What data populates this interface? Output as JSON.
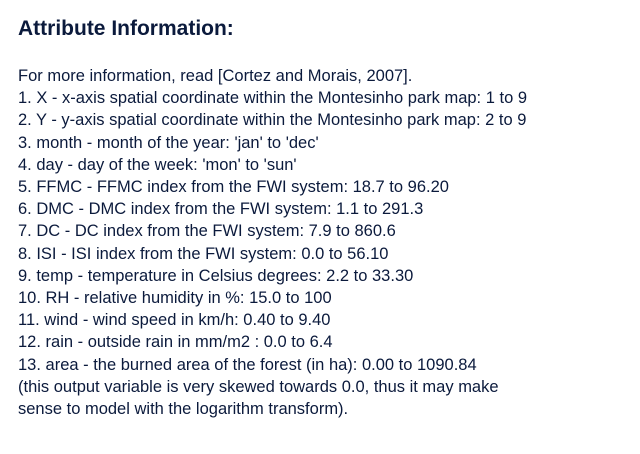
{
  "heading": "Attribute Information:",
  "lines": [
    "For more information, read [Cortez and Morais, 2007].",
    "1. X - x-axis spatial coordinate within the Montesinho park map: 1 to 9",
    "2. Y - y-axis spatial coordinate within the Montesinho park map: 2 to 9",
    "3. month - month of the year: 'jan' to 'dec'",
    "4. day - day of the week: 'mon' to 'sun'",
    "5. FFMC - FFMC index from the FWI system: 18.7 to 96.20",
    "6. DMC - DMC index from the FWI system: 1.1 to 291.3",
    "7. DC - DC index from the FWI system: 7.9 to 860.6",
    "8. ISI - ISI index from the FWI system: 0.0 to 56.10",
    "9. temp - temperature in Celsius degrees: 2.2 to 33.30",
    "10. RH - relative humidity in %: 15.0 to 100",
    "11. wind - wind speed in km/h: 0.40 to 9.40",
    "12. rain - outside rain in mm/m2 : 0.0 to 6.4",
    "13. area - the burned area of the forest (in ha): 0.00 to 1090.84",
    "(this output variable is very skewed towards 0.0, thus it may make",
    "sense to model with the logarithm transform)."
  ]
}
